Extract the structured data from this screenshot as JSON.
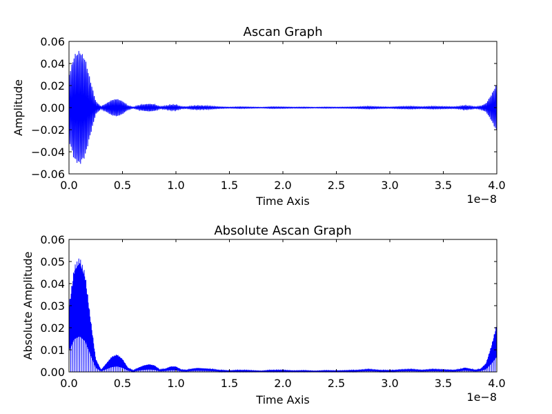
{
  "chart_data": [
    {
      "type": "line",
      "title": "Ascan Graph",
      "xlabel": "Time Axis",
      "ylabel": "Amplitude",
      "x_offset_label": "1e−8",
      "xlim": [
        0.0,
        4.0
      ],
      "ylim": [
        -0.06,
        0.06
      ],
      "xticks": [
        "0.0",
        "0.5",
        "1.0",
        "1.5",
        "2.0",
        "2.5",
        "3.0",
        "3.5",
        "4.0"
      ],
      "yticks": [
        "−0.06",
        "−0.04",
        "−0.02",
        "0.00",
        "0.02",
        "0.04",
        "0.06"
      ],
      "grid": false,
      "line_color": "#0000ff",
      "series": [
        {
          "envelope": {
            "x": [
              0.0,
              0.05,
              0.1,
              0.15,
              0.2,
              0.25,
              0.3,
              0.35,
              0.4,
              0.45,
              0.5,
              0.55,
              0.6,
              0.65,
              0.7,
              0.75,
              0.8,
              0.85,
              0.9,
              0.95,
              1.0,
              1.05,
              1.1,
              1.15,
              1.2,
              1.3,
              1.4,
              1.5,
              1.6,
              1.7,
              1.8,
              1.9,
              2.0,
              2.1,
              2.2,
              2.3,
              2.4,
              2.5,
              2.6,
              2.7,
              2.8,
              2.9,
              3.0,
              3.1,
              3.2,
              3.3,
              3.4,
              3.5,
              3.6,
              3.65,
              3.7,
              3.75,
              3.8,
              3.85,
              3.9,
              3.95,
              4.0
            ],
            "amplitude": [
              0.03,
              0.048,
              0.052,
              0.045,
              0.025,
              0.006,
              0.001,
              0.004,
              0.007,
              0.008,
              0.006,
              0.002,
              0.0005,
              0.002,
              0.003,
              0.0035,
              0.003,
              0.001,
              0.0015,
              0.0025,
              0.0025,
              0.001,
              0.0008,
              0.0015,
              0.0018,
              0.0015,
              0.0008,
              0.0005,
              0.0008,
              0.0006,
              0.0004,
              0.0008,
              0.0007,
              0.0005,
              0.0006,
              0.0004,
              0.0006,
              0.0005,
              0.0006,
              0.0008,
              0.0012,
              0.0008,
              0.0006,
              0.001,
              0.0012,
              0.0008,
              0.0012,
              0.001,
              0.0008,
              0.0012,
              0.002,
              0.0015,
              0.0008,
              0.0015,
              0.004,
              0.012,
              0.022
            ]
          },
          "carrier_cycles_per_unit": 90
        }
      ]
    },
    {
      "type": "line",
      "title": "Absolute Ascan Graph",
      "xlabel": "Time Axis",
      "ylabel": "Absolute Amplitude",
      "x_offset_label": "1e−8",
      "xlim": [
        0.0,
        4.0
      ],
      "ylim": [
        0.0,
        0.06
      ],
      "xticks": [
        "0.0",
        "0.5",
        "1.0",
        "1.5",
        "2.0",
        "2.5",
        "3.0",
        "3.5",
        "4.0"
      ],
      "yticks": [
        "0.00",
        "0.01",
        "0.02",
        "0.03",
        "0.04",
        "0.05",
        "0.06"
      ],
      "grid": false,
      "line_color": "#0000ff",
      "series": [
        {
          "abs_of": 0
        }
      ]
    }
  ]
}
